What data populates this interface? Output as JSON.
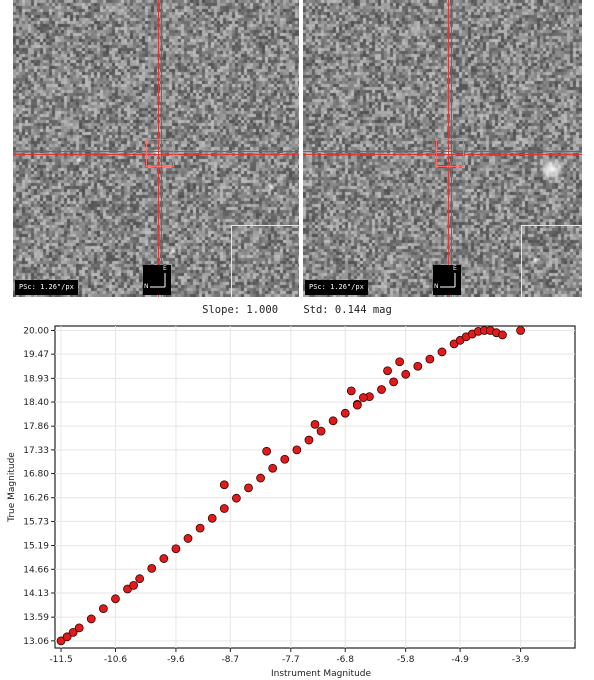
{
  "image_panels": [
    {
      "scale_label": "PSc: 1.26\"/px",
      "compass": {
        "north": "N",
        "east": "E"
      }
    },
    {
      "scale_label": "PSc: 1.26\"/px",
      "compass": {
        "north": "N",
        "east": "E"
      }
    }
  ],
  "fit_stats": {
    "slope_text": "Slope: 1.000",
    "std_text": "Std: 0.144 mag"
  },
  "chart_data": {
    "type": "scatter",
    "title": "",
    "xlabel": "Instrument Magnitude",
    "ylabel": "True Magnitude",
    "xlim": [
      -11.6,
      -3.0
    ],
    "ylim": [
      12.9,
      20.1
    ],
    "x_ticks": [
      "-11.5",
      "-10.6",
      "-9.6",
      "-8.7",
      "-7.7",
      "-6.8",
      "-5.8",
      "-4.9",
      "-3.9"
    ],
    "y_ticks": [
      "13.06",
      "13.59",
      "14.13",
      "14.66",
      "15.19",
      "15.73",
      "16.26",
      "16.80",
      "17.33",
      "17.86",
      "18.40",
      "18.93",
      "19.47",
      "20.00"
    ],
    "grid": true,
    "legend": "none",
    "marker_color": "#e01b1b",
    "marker_edge": "#3a0000",
    "series": [
      {
        "x": [
          -11.5,
          -11.4,
          -11.3,
          -11.2,
          -11.0,
          -10.8,
          -10.6,
          -10.4,
          -10.2,
          -10.0,
          -9.8,
          -9.6,
          -9.4,
          -9.2,
          -9.0,
          -8.8,
          -8.6,
          -8.4,
          -8.2,
          -8.0,
          -7.8,
          -7.6,
          -7.4,
          -7.2,
          -7.0,
          -6.8,
          -6.6,
          -6.4,
          -6.2,
          -6.0,
          -5.8,
          -5.6,
          -5.4,
          -5.2,
          -5.0,
          -4.9,
          -4.8,
          -4.7,
          -4.6,
          -4.5,
          -4.4,
          -4.3,
          -4.2,
          -3.9,
          -8.1,
          -7.3,
          -6.5,
          -6.7,
          -6.1,
          -5.9,
          -10.3,
          -8.8,
          -6.6
        ],
        "y": [
          13.06,
          13.15,
          13.25,
          13.35,
          13.55,
          13.78,
          14.0,
          14.22,
          14.45,
          14.68,
          14.9,
          15.12,
          15.35,
          15.58,
          15.8,
          16.02,
          16.25,
          16.48,
          16.7,
          16.92,
          17.12,
          17.33,
          17.55,
          17.75,
          17.98,
          18.15,
          18.35,
          18.52,
          18.68,
          18.85,
          19.02,
          19.2,
          19.36,
          19.52,
          19.7,
          19.78,
          19.86,
          19.92,
          19.98,
          20.0,
          20.0,
          19.95,
          19.9,
          20.0,
          17.3,
          17.9,
          18.5,
          18.65,
          19.1,
          19.3,
          14.3,
          16.55,
          18.33
        ]
      }
    ]
  }
}
